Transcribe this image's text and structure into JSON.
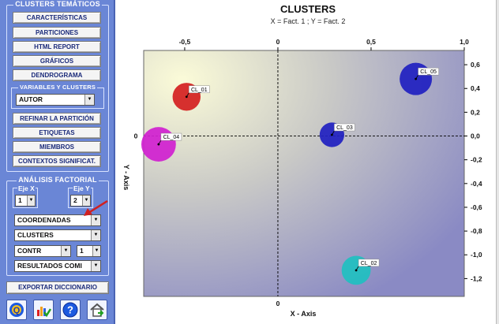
{
  "left_panel": {
    "clusters_group_title": "CLUSTERS TEMÁTICOS",
    "buttons": {
      "caracteristicas": "CARACTERÍSTICAS",
      "particiones": "PARTICIONES",
      "html_report": "HTML REPORT",
      "graficos": "GRÁFICOS",
      "dendrograma": "DENDROGRAMA",
      "refinar": "REFINAR LA PARTICIÓN",
      "etiquetas": "ETIQUETAS",
      "miembros": "MIEMBROS",
      "contextos": "CONTEXTOS SIGNIFICAT.",
      "exportar": "EXPORTAR DICCIONARIO"
    },
    "variables_group_title": "VARIABLES Y CLUSTERS",
    "variables_select": "AUTOR",
    "factorial_group_title": "ANÁLISIS FACTORIAL",
    "eje_x_label": "Eje X",
    "eje_x_value": "1",
    "eje_y_label": "Eje Y",
    "eje_y_value": "2",
    "coordenadas_select": "COORDENADAS",
    "clusters_select": "CLUSTERS",
    "contr_select": "CONTR",
    "contr_num_select": "1",
    "resultados_select": "RESULTADOS COMI",
    "icons": [
      "quit-icon",
      "chart-check-icon",
      "help-icon",
      "home-icon"
    ],
    "icon_glyphs": {
      "quit": "Q",
      "help": "?"
    }
  },
  "chart_data": {
    "type": "scatter",
    "title": "CLUSTERS",
    "subtitle": "X = Fact. 1 ; Y = Fact. 2",
    "xlabel": "X - Axis",
    "ylabel": "Y - Axis",
    "xlim": [
      -0.72,
      1.0
    ],
    "ylim": [
      -1.35,
      0.72
    ],
    "x_ticks": [
      "-0,5",
      "0",
      "0,5",
      "1,0"
    ],
    "x_tick_values": [
      -0.5,
      0,
      0.5,
      1.0
    ],
    "y_ticks": [
      "0,6",
      "0,4",
      "0,2",
      "0,0",
      "-0,2",
      "-0,4",
      "-0,6",
      "-0,8",
      "-1,0",
      "-1,2"
    ],
    "y_tick_values": [
      0.6,
      0.4,
      0.2,
      0.0,
      -0.2,
      -0.4,
      -0.6,
      -0.8,
      -1.0,
      -1.2
    ],
    "origin_x_label": "0",
    "origin_y_label": "0",
    "points": [
      {
        "label": "CL_01",
        "x": -0.49,
        "y": 0.33,
        "size": 0.55,
        "color": "#d42020"
      },
      {
        "label": "CL_02",
        "x": 0.42,
        "y": -1.13,
        "size": 0.6,
        "color": "#20c0c0"
      },
      {
        "label": "CL_03",
        "x": 0.29,
        "y": 0.01,
        "size": 0.4,
        "color": "#2020c0"
      },
      {
        "label": "CL_04",
        "x": -0.64,
        "y": -0.07,
        "size": 0.85,
        "color": "#d020d0"
      },
      {
        "label": "CL_05",
        "x": 0.74,
        "y": 0.48,
        "size": 0.75,
        "color": "#2020c0"
      }
    ],
    "grid": false,
    "origin_lines": true
  },
  "colors": {
    "panel_bg": "#6a86d6",
    "button_text": "#1a2a7a",
    "annotation_arrow": "#d02020"
  }
}
